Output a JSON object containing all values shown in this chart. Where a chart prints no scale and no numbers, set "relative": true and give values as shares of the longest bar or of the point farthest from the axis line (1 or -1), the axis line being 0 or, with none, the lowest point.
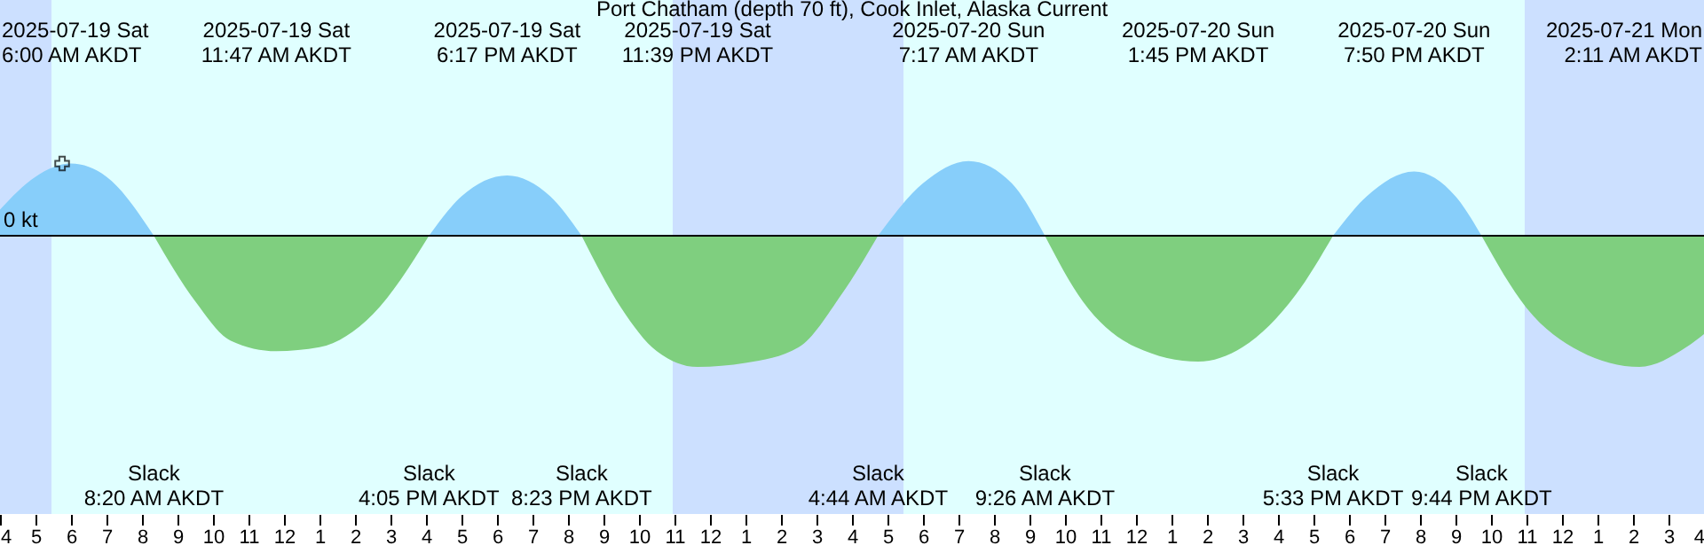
{
  "chart_data": {
    "type": "area",
    "title": "Port Chatham (depth 70 ft), Cook Inlet, Alaska Current",
    "relative": true,
    "x": [
      "2025-07-19T04:00",
      "2025-07-19T05:00",
      "2025-07-19T06:00",
      "2025-07-19T07:00",
      "2025-07-19T08:20",
      "2025-07-19T09:30",
      "2025-07-19T10:30",
      "2025-07-19T11:47",
      "2025-07-19T13:00",
      "2025-07-19T14:30",
      "2025-07-19T16:05",
      "2025-07-19T17:00",
      "2025-07-19T18:17",
      "2025-07-19T19:30",
      "2025-07-19T20:23",
      "2025-07-19T21:30",
      "2025-07-19T22:30",
      "2025-07-19T23:39",
      "2025-07-20T01:00",
      "2025-07-20T02:30",
      "2025-07-20T03:42",
      "2025-07-20T04:44",
      "2025-07-20T06:00",
      "2025-07-20T07:17",
      "2025-07-20T08:30",
      "2025-07-20T09:26",
      "2025-07-20T10:30",
      "2025-07-20T12:00",
      "2025-07-20T13:45",
      "2025-07-20T15:00",
      "2025-07-20T16:30",
      "2025-07-20T17:33",
      "2025-07-20T18:30",
      "2025-07-20T19:50",
      "2025-07-20T21:00",
      "2025-07-20T21:44",
      "2025-07-20T23:00",
      "2025-07-21T00:30",
      "2025-07-21T02:11",
      "2025-07-21T03:30",
      "2025-07-21T04:00"
    ],
    "series": [
      {
        "color": "#87cefa",
        "values": [
          0.2,
          0.45,
          0.55,
          0.45,
          0,
          null,
          null,
          null,
          null,
          null,
          0,
          0.3,
          0.46,
          0.3,
          0,
          null,
          null,
          null,
          null,
          null,
          null,
          0,
          0.4,
          0.57,
          0.4,
          0,
          null,
          null,
          null,
          null,
          null,
          0,
          0.3,
          0.49,
          0.3,
          0,
          null,
          null,
          null,
          null,
          null
        ]
      },
      {
        "color": "#7fcf7f",
        "values": [
          null,
          null,
          null,
          null,
          0,
          -0.5,
          -0.8,
          -0.88,
          -0.85,
          -0.6,
          0,
          null,
          null,
          null,
          0,
          -0.55,
          -0.88,
          -1,
          -0.97,
          -0.85,
          -0.45,
          0,
          null,
          null,
          null,
          0,
          -0.5,
          -0.85,
          -0.96,
          -0.85,
          -0.45,
          0,
          null,
          null,
          null,
          0,
          -0.55,
          -0.88,
          -1,
          -0.85,
          -0.75
        ]
      },
      {
        "type": "scatter",
        "marker": "cross",
        "color": "#000000",
        "x": [
          "2025-07-19T05:45"
        ],
        "values": [
          0.55
        ]
      }
    ],
    "xlim": [
      "2025-07-19T04:00",
      "2025-07-21T04:00"
    ],
    "xticks": [
      {
        "value": "2025-07-19T04:00",
        "label": "4"
      },
      {
        "value": "2025-07-19T05:00",
        "label": "5"
      },
      {
        "value": "2025-07-19T06:00",
        "label": "6"
      },
      {
        "value": "2025-07-19T07:00",
        "label": "7"
      },
      {
        "value": "2025-07-19T08:00",
        "label": "8"
      },
      {
        "value": "2025-07-19T09:00",
        "label": "9"
      },
      {
        "value": "2025-07-19T10:00",
        "label": "10"
      },
      {
        "value": "2025-07-19T11:00",
        "label": "11"
      },
      {
        "value": "2025-07-19T12:00",
        "label": "12"
      },
      {
        "value": "2025-07-19T13:00",
        "label": "1"
      },
      {
        "value": "2025-07-19T14:00",
        "label": "2"
      },
      {
        "value": "2025-07-19T15:00",
        "label": "3"
      },
      {
        "value": "2025-07-19T16:00",
        "label": "4"
      },
      {
        "value": "2025-07-19T17:00",
        "label": "5"
      },
      {
        "value": "2025-07-19T18:00",
        "label": "6"
      },
      {
        "value": "2025-07-19T19:00",
        "label": "7"
      },
      {
        "value": "2025-07-19T20:00",
        "label": "8"
      },
      {
        "value": "2025-07-19T21:00",
        "label": "9"
      },
      {
        "value": "2025-07-19T22:00",
        "label": "10"
      },
      {
        "value": "2025-07-19T23:00",
        "label": "11"
      },
      {
        "value": "2025-07-20T00:00",
        "label": "12"
      },
      {
        "value": "2025-07-20T01:00",
        "label": "1"
      },
      {
        "value": "2025-07-20T02:00",
        "label": "2"
      },
      {
        "value": "2025-07-20T03:00",
        "label": "3"
      },
      {
        "value": "2025-07-20T04:00",
        "label": "4"
      },
      {
        "value": "2025-07-20T05:00",
        "label": "5"
      },
      {
        "value": "2025-07-20T06:00",
        "label": "6"
      },
      {
        "value": "2025-07-20T07:00",
        "label": "7"
      },
      {
        "value": "2025-07-20T08:00",
        "label": "8"
      },
      {
        "value": "2025-07-20T09:00",
        "label": "9"
      },
      {
        "value": "2025-07-20T10:00",
        "label": "10"
      },
      {
        "value": "2025-07-20T11:00",
        "label": "11"
      },
      {
        "value": "2025-07-20T12:00",
        "label": "12"
      },
      {
        "value": "2025-07-20T13:00",
        "label": "1"
      },
      {
        "value": "2025-07-20T14:00",
        "label": "2"
      },
      {
        "value": "2025-07-20T15:00",
        "label": "3"
      },
      {
        "value": "2025-07-20T16:00",
        "label": "4"
      },
      {
        "value": "2025-07-20T17:00",
        "label": "5"
      },
      {
        "value": "2025-07-20T18:00",
        "label": "6"
      },
      {
        "value": "2025-07-20T19:00",
        "label": "7"
      },
      {
        "value": "2025-07-20T20:00",
        "label": "8"
      },
      {
        "value": "2025-07-20T21:00",
        "label": "9"
      },
      {
        "value": "2025-07-20T22:00",
        "label": "10"
      },
      {
        "value": "2025-07-20T23:00",
        "label": "11"
      },
      {
        "value": "2025-07-21T00:00",
        "label": "12"
      },
      {
        "value": "2025-07-21T01:00",
        "label": "1"
      },
      {
        "value": "2025-07-21T02:00",
        "label": "2"
      },
      {
        "value": "2025-07-21T03:00",
        "label": "3"
      },
      {
        "value": "2025-07-21T04:00",
        "label": "4"
      }
    ],
    "bands": [
      {
        "axis": "x",
        "from": "2025-07-19T04:00",
        "to": "2025-07-19T05:27",
        "color": "#cce0ff"
      },
      {
        "axis": "x",
        "from": "2025-07-19T22:57",
        "to": "2025-07-20T05:27",
        "color": "#cce0ff"
      },
      {
        "axis": "x",
        "from": "2025-07-20T22:57",
        "to": "2025-07-21T04:00",
        "color": "#cce0ff"
      }
    ],
    "annotations": [
      "0 kt",
      "2025-07-19 Sat\n6:00 AM AKDT",
      "2025-07-19 Sat\n11:47 AM AKDT",
      "2025-07-19 Sat\n6:17 PM AKDT",
      "2025-07-19 Sat\n11:39 PM AKDT",
      "2025-07-20 Sun\n7:17 AM AKDT",
      "2025-07-20 Sun\n1:45 PM AKDT",
      "2025-07-20 Sun\n7:50 PM AKDT",
      "2025-07-21 Mon\n2:11 AM AKDT",
      "Slack\n8:20 AM AKDT",
      "Slack\n4:05 PM AKDT",
      "Slack\n8:23 PM AKDT",
      "Slack\n4:44 AM AKDT",
      "Slack\n9:26 AM AKDT",
      "Slack\n5:33 PM AKDT",
      "Slack\n9:44 PM AKDT"
    ]
  }
}
